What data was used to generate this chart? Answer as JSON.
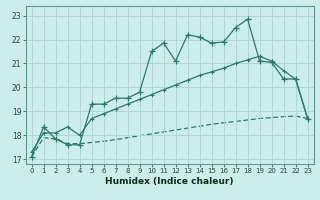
{
  "xlabel": "Humidex (Indice chaleur)",
  "bg_color": "#cceee8",
  "grid_color": "#aad8d0",
  "line_color": "#2a7a6a",
  "xlim": [
    -0.5,
    23.5
  ],
  "ylim": [
    16.8,
    23.4
  ],
  "xticks": [
    0,
    1,
    2,
    3,
    4,
    5,
    6,
    7,
    8,
    9,
    10,
    11,
    12,
    13,
    14,
    15,
    16,
    17,
    18,
    19,
    20,
    21,
    22,
    23
  ],
  "yticks": [
    17,
    18,
    19,
    20,
    21,
    22,
    23
  ],
  "line1_x": [
    0,
    1,
    2,
    3,
    4,
    5,
    6,
    7,
    8,
    9,
    10,
    11,
    12,
    13,
    14,
    15,
    16,
    17,
    18,
    19,
    20,
    21,
    22,
    23
  ],
  "line1_y": [
    17.1,
    18.35,
    17.85,
    17.6,
    17.6,
    19.3,
    19.3,
    19.55,
    19.55,
    19.8,
    21.5,
    21.85,
    21.1,
    22.2,
    22.1,
    21.85,
    21.9,
    22.5,
    22.85,
    21.1,
    21.05,
    20.35,
    20.35,
    18.7
  ],
  "line2_x": [
    0,
    1,
    2,
    3,
    4,
    5,
    6,
    7,
    8,
    9,
    10,
    11,
    12,
    13,
    14,
    15,
    16,
    17,
    18,
    19,
    20,
    21,
    22,
    23
  ],
  "line2_y": [
    17.3,
    18.1,
    18.1,
    18.35,
    18.0,
    18.7,
    18.9,
    19.1,
    19.3,
    19.5,
    19.7,
    19.9,
    20.1,
    20.3,
    20.5,
    20.65,
    20.8,
    21.0,
    21.15,
    21.3,
    21.1,
    20.7,
    20.35,
    18.7
  ],
  "line3_x": [
    0,
    1,
    2,
    3,
    4,
    5,
    6,
    7,
    8,
    9,
    10,
    11,
    12,
    13,
    14,
    15,
    16,
    17,
    18,
    19,
    20,
    21,
    22,
    23
  ],
  "line3_y": [
    17.1,
    17.9,
    17.85,
    17.65,
    17.65,
    17.7,
    17.75,
    17.82,
    17.9,
    17.98,
    18.06,
    18.14,
    18.22,
    18.3,
    18.38,
    18.46,
    18.52,
    18.58,
    18.64,
    18.7,
    18.74,
    18.78,
    18.8,
    18.7
  ],
  "markersize": 4,
  "linewidth": 0.9
}
